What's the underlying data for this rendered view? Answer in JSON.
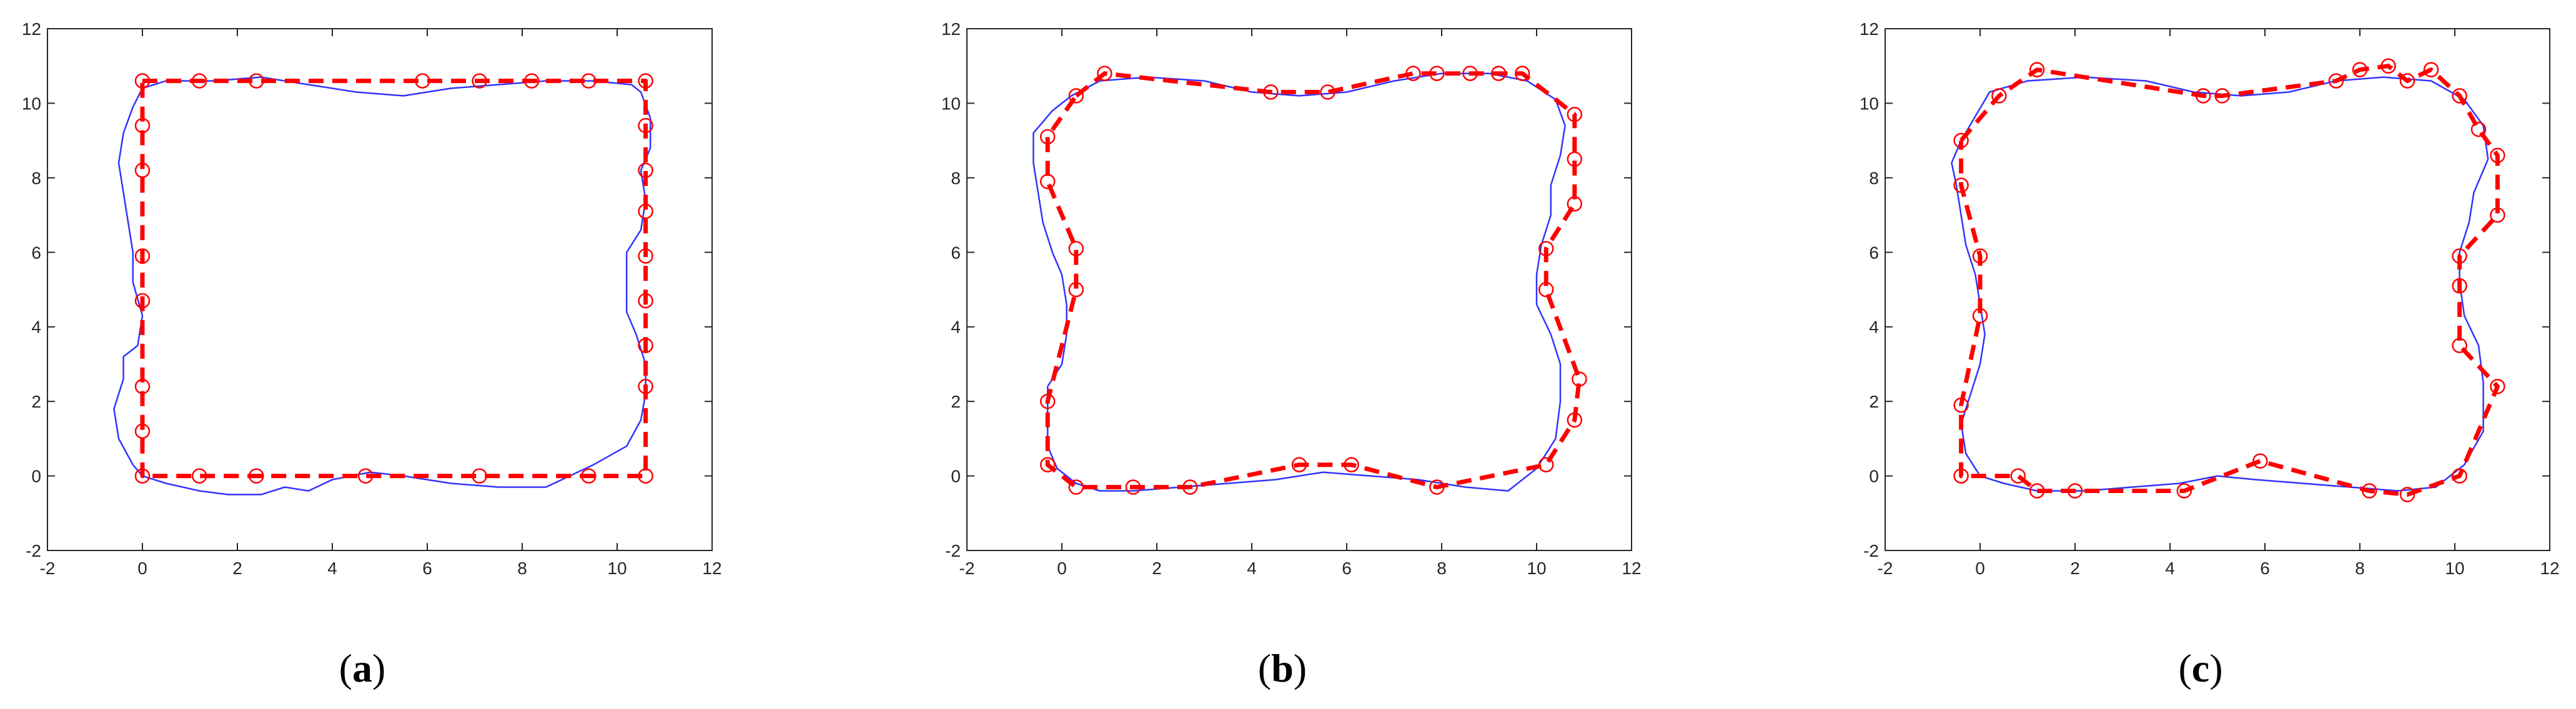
{
  "colors": {
    "reference": "#3333ff",
    "estimate": "#ff0000",
    "axis": "#262626",
    "background": "#ffffff"
  },
  "chart_data": [
    {
      "type": "line",
      "panel_label": "a",
      "xlim": [
        -2,
        12
      ],
      "ylim": [
        -2,
        12
      ],
      "x_ticks": [
        -2,
        0,
        2,
        4,
        6,
        8,
        10,
        12
      ],
      "y_ticks": [
        -2,
        0,
        2,
        4,
        6,
        8,
        10,
        12
      ],
      "grid": false,
      "series": [
        {
          "style": "thin solid blue",
          "points": [
            [
              0.0,
              10.4
            ],
            [
              0.5,
              10.6
            ],
            [
              1.5,
              10.6
            ],
            [
              2.5,
              10.7
            ],
            [
              3.5,
              10.5
            ],
            [
              4.5,
              10.3
            ],
            [
              5.5,
              10.2
            ],
            [
              6.5,
              10.4
            ],
            [
              7.5,
              10.5
            ],
            [
              8.5,
              10.6
            ],
            [
              9.5,
              10.6
            ],
            [
              10.3,
              10.5
            ],
            [
              10.5,
              10.3
            ],
            [
              10.7,
              9.6
            ],
            [
              10.7,
              8.8
            ],
            [
              10.5,
              8.2
            ],
            [
              10.6,
              7.4
            ],
            [
              10.5,
              6.6
            ],
            [
              10.2,
              6.0
            ],
            [
              10.2,
              5.2
            ],
            [
              10.2,
              4.4
            ],
            [
              10.4,
              3.8
            ],
            [
              10.6,
              3.0
            ],
            [
              10.6,
              2.2
            ],
            [
              10.5,
              1.5
            ],
            [
              10.2,
              0.8
            ],
            [
              9.5,
              0.3
            ],
            [
              8.5,
              -0.3
            ],
            [
              7.5,
              -0.3
            ],
            [
              6.5,
              -0.2
            ],
            [
              5.5,
              0.0
            ],
            [
              4.8,
              0.1
            ],
            [
              4.0,
              -0.1
            ],
            [
              3.5,
              -0.4
            ],
            [
              3.0,
              -0.3
            ],
            [
              2.5,
              -0.5
            ],
            [
              1.8,
              -0.5
            ],
            [
              1.2,
              -0.4
            ],
            [
              0.5,
              -0.2
            ],
            [
              0.0,
              0.0
            ],
            [
              -0.2,
              0.3
            ],
            [
              -0.5,
              1.0
            ],
            [
              -0.6,
              1.8
            ],
            [
              -0.4,
              2.6
            ],
            [
              -0.4,
              3.2
            ],
            [
              -0.1,
              3.5
            ],
            [
              0.0,
              4.3
            ],
            [
              -0.2,
              5.2
            ],
            [
              -0.2,
              6.0
            ],
            [
              -0.3,
              6.8
            ],
            [
              -0.4,
              7.6
            ],
            [
              -0.5,
              8.4
            ],
            [
              -0.4,
              9.2
            ],
            [
              -0.2,
              9.9
            ],
            [
              0.0,
              10.4
            ]
          ]
        },
        {
          "style": "thick dashed red with circle markers",
          "points": [
            [
              0.0,
              10.6
            ],
            [
              1.2,
              10.6
            ],
            [
              2.4,
              10.6
            ],
            [
              5.9,
              10.6
            ],
            [
              7.1,
              10.6
            ],
            [
              8.2,
              10.6
            ],
            [
              9.4,
              10.6
            ],
            [
              10.6,
              10.6
            ],
            [
              10.6,
              9.4
            ],
            [
              10.6,
              8.2
            ],
            [
              10.6,
              7.1
            ],
            [
              10.6,
              5.9
            ],
            [
              10.6,
              4.7
            ],
            [
              10.6,
              3.5
            ],
            [
              10.6,
              2.4
            ],
            [
              10.6,
              0.0
            ],
            [
              9.4,
              0.0
            ],
            [
              7.1,
              0.0
            ],
            [
              4.7,
              0.0
            ],
            [
              2.4,
              0.0
            ],
            [
              1.2,
              0.0
            ],
            [
              0.0,
              0.0
            ],
            [
              0.0,
              1.2
            ],
            [
              0.0,
              2.4
            ],
            [
              0.0,
              4.7
            ],
            [
              0.0,
              5.9
            ],
            [
              0.0,
              8.2
            ],
            [
              0.0,
              9.4
            ],
            [
              0.0,
              10.6
            ]
          ]
        }
      ]
    },
    {
      "type": "line",
      "panel_label": "b",
      "xlim": [
        -2,
        12
      ],
      "ylim": [
        -2,
        12
      ],
      "x_ticks": [
        -2,
        0,
        2,
        4,
        6,
        8,
        10,
        12
      ],
      "y_ticks": [
        -2,
        0,
        2,
        4,
        6,
        8,
        10,
        12
      ],
      "grid": false,
      "series": [
        {
          "style": "thin solid blue",
          "points": [
            [
              0.2,
              10.2
            ],
            [
              0.8,
              10.6
            ],
            [
              1.8,
              10.7
            ],
            [
              3.0,
              10.6
            ],
            [
              4.0,
              10.3
            ],
            [
              5.0,
              10.2
            ],
            [
              6.0,
              10.3
            ],
            [
              7.0,
              10.6
            ],
            [
              8.0,
              10.8
            ],
            [
              9.0,
              10.8
            ],
            [
              9.8,
              10.6
            ],
            [
              10.4,
              10.1
            ],
            [
              10.6,
              9.4
            ],
            [
              10.5,
              8.6
            ],
            [
              10.3,
              7.8
            ],
            [
              10.3,
              7.0
            ],
            [
              10.1,
              6.2
            ],
            [
              10.0,
              5.4
            ],
            [
              10.0,
              4.6
            ],
            [
              10.3,
              3.8
            ],
            [
              10.5,
              3.0
            ],
            [
              10.5,
              2.0
            ],
            [
              10.4,
              1.0
            ],
            [
              10.0,
              0.2
            ],
            [
              9.4,
              -0.4
            ],
            [
              8.5,
              -0.3
            ],
            [
              7.5,
              -0.1
            ],
            [
              6.5,
              0.0
            ],
            [
              5.5,
              0.1
            ],
            [
              4.5,
              -0.1
            ],
            [
              3.5,
              -0.2
            ],
            [
              2.5,
              -0.3
            ],
            [
              1.5,
              -0.4
            ],
            [
              0.8,
              -0.4
            ],
            [
              0.3,
              -0.2
            ],
            [
              -0.1,
              0.2
            ],
            [
              -0.3,
              0.8
            ],
            [
              -0.3,
              1.6
            ],
            [
              -0.3,
              2.4
            ],
            [
              0.0,
              3.0
            ],
            [
              0.1,
              3.8
            ],
            [
              0.1,
              4.6
            ],
            [
              0.0,
              5.4
            ],
            [
              -0.2,
              6.0
            ],
            [
              -0.4,
              6.8
            ],
            [
              -0.5,
              7.6
            ],
            [
              -0.6,
              8.4
            ],
            [
              -0.6,
              9.2
            ],
            [
              -0.2,
              9.8
            ],
            [
              0.2,
              10.2
            ]
          ]
        },
        {
          "style": "thick dashed red with circle markers",
          "points": [
            [
              0.3,
              10.2
            ],
            [
              0.9,
              10.8
            ],
            [
              4.4,
              10.3
            ],
            [
              5.6,
              10.3
            ],
            [
              7.4,
              10.8
            ],
            [
              7.9,
              10.8
            ],
            [
              8.6,
              10.8
            ],
            [
              9.2,
              10.8
            ],
            [
              9.7,
              10.8
            ],
            [
              10.8,
              9.7
            ],
            [
              10.8,
              8.5
            ],
            [
              10.8,
              7.3
            ],
            [
              10.2,
              6.1
            ],
            [
              10.2,
              5.0
            ],
            [
              10.9,
              2.6
            ],
            [
              10.8,
              1.5
            ],
            [
              10.2,
              0.3
            ],
            [
              7.9,
              -0.3
            ],
            [
              6.1,
              0.3
            ],
            [
              5.0,
              0.3
            ],
            [
              2.7,
              -0.3
            ],
            [
              1.5,
              -0.3
            ],
            [
              0.3,
              -0.3
            ],
            [
              -0.3,
              0.3
            ],
            [
              -0.3,
              2.0
            ],
            [
              0.3,
              5.0
            ],
            [
              0.3,
              6.1
            ],
            [
              -0.3,
              7.9
            ],
            [
              -0.3,
              9.1
            ],
            [
              0.3,
              10.2
            ]
          ]
        }
      ]
    },
    {
      "type": "line",
      "panel_label": "c",
      "xlim": [
        -2,
        12
      ],
      "ylim": [
        -2,
        12
      ],
      "x_ticks": [
        -2,
        0,
        2,
        4,
        6,
        8,
        10,
        12
      ],
      "y_ticks": [
        -2,
        0,
        2,
        4,
        6,
        8,
        10,
        12
      ],
      "grid": false,
      "series": [
        {
          "style": "thin solid blue",
          "points": [
            [
              -0.4,
              9.0
            ],
            [
              0.2,
              10.3
            ],
            [
              1.0,
              10.6
            ],
            [
              2.2,
              10.7
            ],
            [
              3.5,
              10.6
            ],
            [
              4.5,
              10.3
            ],
            [
              5.5,
              10.2
            ],
            [
              6.5,
              10.3
            ],
            [
              7.5,
              10.6
            ],
            [
              8.5,
              10.7
            ],
            [
              9.5,
              10.6
            ],
            [
              10.2,
              10.1
            ],
            [
              10.6,
              9.4
            ],
            [
              10.7,
              8.5
            ],
            [
              10.4,
              7.6
            ],
            [
              10.3,
              6.8
            ],
            [
              10.1,
              6.0
            ],
            [
              10.1,
              5.2
            ],
            [
              10.2,
              4.3
            ],
            [
              10.5,
              3.5
            ],
            [
              10.6,
              2.5
            ],
            [
              10.6,
              1.2
            ],
            [
              10.2,
              0.3
            ],
            [
              9.6,
              -0.3
            ],
            [
              8.8,
              -0.4
            ],
            [
              7.8,
              -0.3
            ],
            [
              6.8,
              -0.2
            ],
            [
              5.8,
              -0.1
            ],
            [
              5.0,
              0.0
            ],
            [
              4.2,
              -0.2
            ],
            [
              3.2,
              -0.3
            ],
            [
              2.2,
              -0.4
            ],
            [
              1.2,
              -0.4
            ],
            [
              0.5,
              -0.2
            ],
            [
              0.0,
              0.0
            ],
            [
              -0.3,
              0.6
            ],
            [
              -0.4,
              1.4
            ],
            [
              -0.2,
              2.2
            ],
            [
              0.0,
              3.0
            ],
            [
              0.1,
              3.8
            ],
            [
              0.0,
              4.6
            ],
            [
              -0.1,
              5.4
            ],
            [
              -0.3,
              6.2
            ],
            [
              -0.4,
              7.0
            ],
            [
              -0.5,
              7.8
            ],
            [
              -0.6,
              8.4
            ],
            [
              -0.4,
              9.0
            ]
          ]
        },
        {
          "style": "thick dashed red with circle markers",
          "points": [
            [
              -0.4,
              9.0
            ],
            [
              0.4,
              10.2
            ],
            [
              1.2,
              10.9
            ],
            [
              4.7,
              10.2
            ],
            [
              5.1,
              10.2
            ],
            [
              7.5,
              10.6
            ],
            [
              8.0,
              10.9
            ],
            [
              8.6,
              11.0
            ],
            [
              9.0,
              10.6
            ],
            [
              9.5,
              10.9
            ],
            [
              10.1,
              10.2
            ],
            [
              10.5,
              9.3
            ],
            [
              10.9,
              8.6
            ],
            [
              10.9,
              7.0
            ],
            [
              10.1,
              5.9
            ],
            [
              10.1,
              5.1
            ],
            [
              10.1,
              3.5
            ],
            [
              10.9,
              2.4
            ],
            [
              10.1,
              0.0
            ],
            [
              9.0,
              -0.5
            ],
            [
              8.2,
              -0.4
            ],
            [
              5.9,
              0.4
            ],
            [
              4.3,
              -0.4
            ],
            [
              2.0,
              -0.4
            ],
            [
              1.2,
              -0.4
            ],
            [
              0.8,
              0.0
            ],
            [
              -0.4,
              0.0
            ],
            [
              -0.4,
              1.9
            ],
            [
              0.0,
              4.3
            ],
            [
              0.0,
              5.9
            ],
            [
              -0.4,
              7.8
            ],
            [
              -0.4,
              9.0
            ]
          ]
        }
      ]
    }
  ]
}
